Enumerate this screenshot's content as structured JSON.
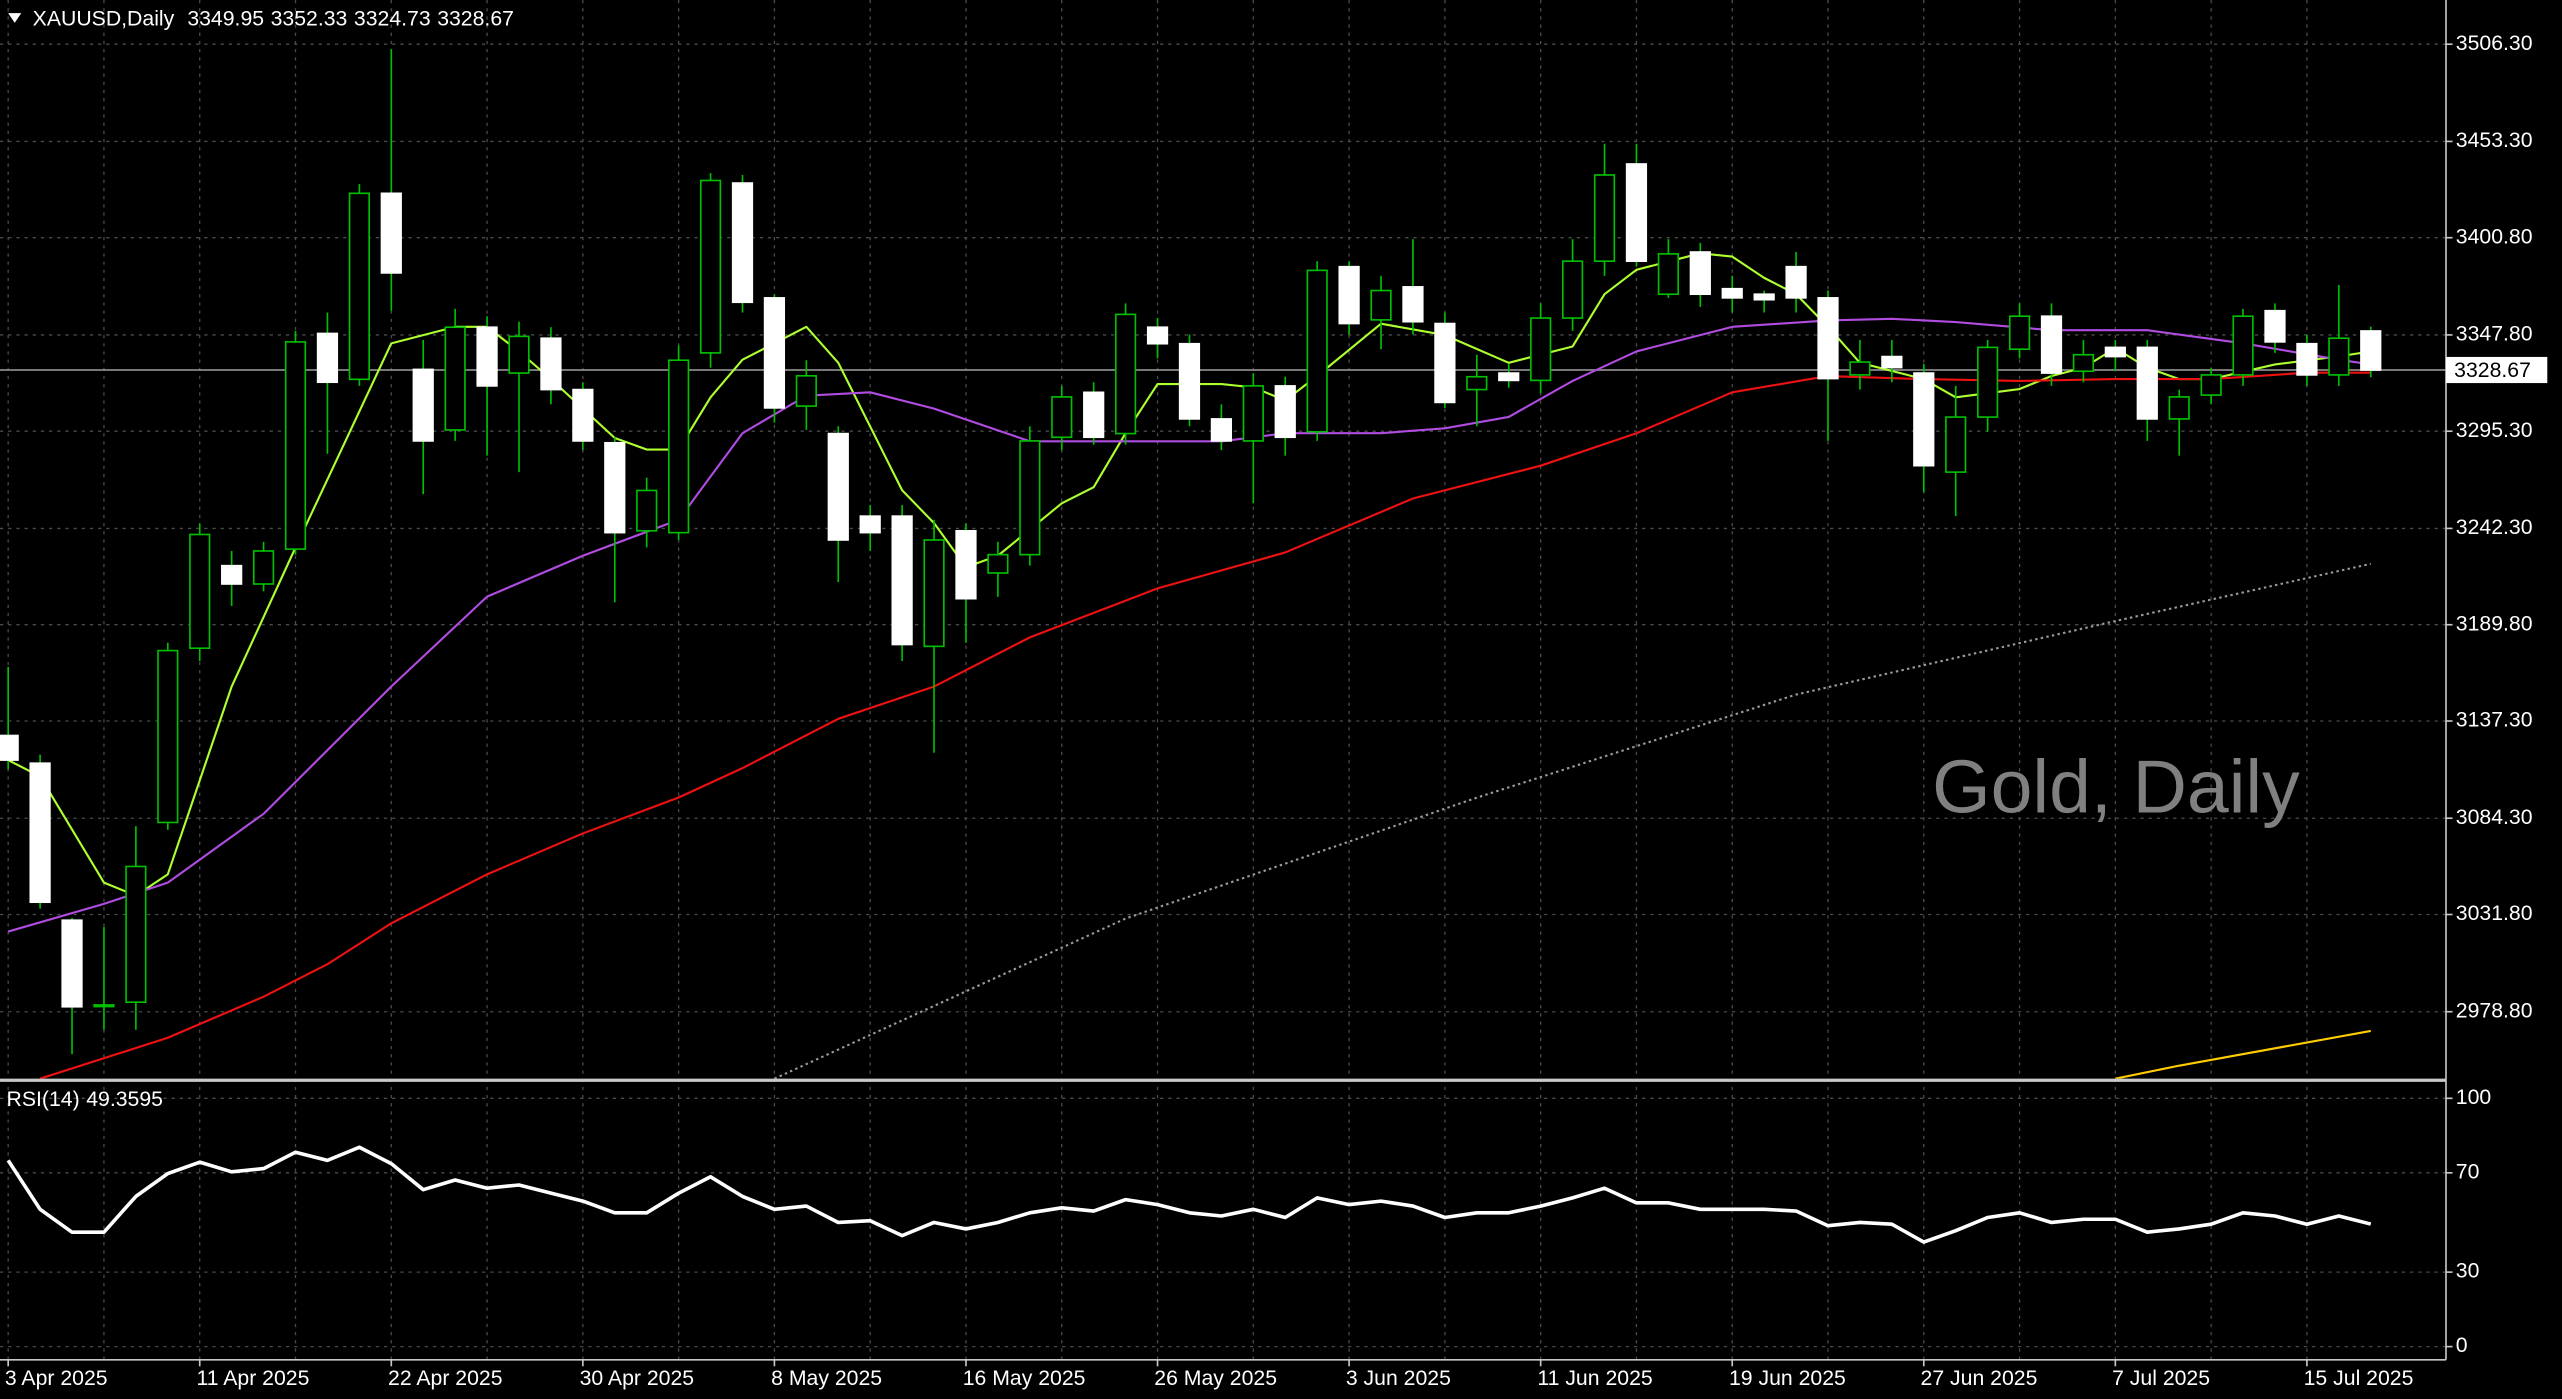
{
  "chart_data": {
    "type": "candlestick",
    "symbol": "XAUUSD,Daily",
    "title": "Gold, Daily",
    "categories": [
      "3 Apr 2025",
      null,
      null,
      null,
      null,
      null,
      "11 Apr 2025",
      null,
      null,
      null,
      null,
      null,
      "22 Apr 2025",
      null,
      null,
      null,
      null,
      null,
      "30 Apr 2025",
      null,
      null,
      null,
      null,
      null,
      "8 May 2025",
      null,
      null,
      null,
      null,
      null,
      "16 May 2025",
      null,
      null,
      null,
      null,
      null,
      "26 May 2025",
      null,
      null,
      null,
      null,
      null,
      "3 Jun 2025",
      null,
      null,
      null,
      null,
      null,
      "11 Jun 2025",
      null,
      null,
      null,
      null,
      null,
      "19 Jun 2025",
      null,
      null,
      null,
      null,
      null,
      "27 Jun 2025",
      null,
      null,
      null,
      null,
      null,
      "7 Jul 2025",
      null,
      null,
      null,
      null,
      null,
      "15 Jul 2025",
      null,
      null
    ],
    "open": [
      3129.4,
      3114.3,
      3028.7,
      2982,
      2984,
      3082,
      3177,
      3222,
      3212,
      3231,
      3348.6,
      3323.6,
      3425,
      3329,
      3296,
      3352,
      3327,
      3346,
      3318,
      3289,
      3241,
      3240,
      3338,
      3430.6,
      3368,
      3309,
      3294,
      3249,
      3249,
      3178,
      3241,
      3218,
      3228,
      3292,
      3316.5,
      3294,
      3352,
      3343,
      3302,
      3290,
      3320,
      3295,
      3385,
      3356,
      3374,
      3354,
      3318,
      3327,
      3323,
      3357,
      3388,
      3441,
      3370,
      3393,
      3373,
      3370,
      3385,
      3368,
      3326,
      3336,
      3327,
      3273,
      3303,
      3340,
      3358,
      3328,
      3341,
      3341,
      3302,
      3315,
      3326,
      3361,
      3343,
      3326,
      3349.95
    ],
    "high": [
      3166.8,
      3119,
      3030,
      3025,
      3080,
      3180,
      3245,
      3230,
      3235,
      3350,
      3360,
      3430,
      3503.6,
      3345,
      3362,
      3358,
      3355,
      3352,
      3322,
      3292,
      3270,
      3342,
      3436,
      3435,
      3370,
      3334,
      3298,
      3255,
      3255,
      3247,
      3245,
      3235,
      3298,
      3320,
      3322,
      3365,
      3357,
      3348,
      3310,
      3327,
      3325,
      3388,
      3388,
      3380,
      3400,
      3360,
      3337,
      3332,
      3365,
      3400,
      3452,
      3452,
      3400,
      3398,
      3380,
      3372,
      3393,
      3372,
      3345,
      3345,
      3332,
      3320,
      3345,
      3365,
      3365,
      3345,
      3345,
      3345,
      3318,
      3330,
      3362,
      3365,
      3348,
      3375,
      3352.33
    ],
    "low": [
      3111,
      3035,
      2955.6,
      2969,
      2969,
      3078,
      3170,
      3200,
      3208,
      3228,
      3283,
      3320,
      3361,
      3261,
      3290,
      3282,
      3273,
      3310,
      3285,
      3202,
      3232,
      3236,
      3330,
      3360,
      3300,
      3296,
      3213,
      3230,
      3170,
      3120,
      3180,
      3205,
      3222,
      3285,
      3288,
      3288,
      3335,
      3298,
      3285,
      3256,
      3282,
      3290,
      3348,
      3340,
      3348,
      3308,
      3298,
      3319,
      3316,
      3350,
      3380,
      3385,
      3368,
      3363,
      3360,
      3360,
      3360,
      3290,
      3318,
      3322,
      3262,
      3249,
      3295,
      3335,
      3320,
      3322,
      3328,
      3290,
      3282,
      3310,
      3320,
      3338,
      3320,
      3320,
      3324.73
    ],
    "close": [
      3116,
      3038.5,
      2981.5,
      2982.5,
      3058,
      3175.7,
      3239,
      3212,
      3230,
      3344,
      3322,
      3425,
      3381.6,
      3290,
      3352,
      3320,
      3347,
      3318,
      3290,
      3240,
      3263,
      3334,
      3432,
      3365.6,
      3308,
      3325.5,
      3236,
      3240,
      3179,
      3236,
      3204,
      3228,
      3290,
      3314,
      3292,
      3359,
      3343,
      3302,
      3290,
      3320,
      3292,
      3383,
      3354,
      3372,
      3355,
      3311,
      3325,
      3323,
      3357,
      3388,
      3435,
      3388,
      3392,
      3370,
      3368,
      3367,
      3368,
      3324,
      3333,
      3330,
      3276.5,
      3303,
      3341,
      3358,
      3327,
      3337,
      3336,
      3302,
      3314,
      3326,
      3358,
      3344,
      3326,
      3346,
      3328.67
    ],
    "up_color": "#00c000",
    "down_color": "#ffffff",
    "overlays": [
      {
        "color": "#adff2f",
        "style": "solid",
        "x": [
          0,
          1,
          3,
          4,
          5,
          7,
          9,
          12,
          14,
          15,
          16,
          17,
          19,
          20,
          21,
          22,
          23,
          25,
          26,
          28,
          29,
          30,
          31,
          33,
          34,
          35,
          36,
          38,
          39,
          40,
          41,
          43,
          45,
          47,
          49,
          50,
          51,
          53,
          54,
          55,
          56,
          57,
          58,
          60,
          61,
          63,
          64,
          65,
          66,
          67,
          68,
          69,
          71,
          73,
          74
        ],
        "values": [
          3116.0,
          3107.1,
          3049.2,
          3042.1,
          3053.7,
          3156.1,
          3231.9,
          3343.2,
          3352.2,
          3352.2,
          3338.8,
          3323.7,
          3291.6,
          3285.3,
          3285.3,
          3313.8,
          3334.3,
          3352.2,
          3332.6,
          3263.1,
          3245.2,
          3221.2,
          3227.4,
          3256.0,
          3264.8,
          3294.2,
          3321.0,
          3321.0,
          3319.2,
          3312.1,
          3325.4,
          3353.9,
          3347.7,
          3332.6,
          3341.5,
          3370.0,
          3383.3,
          3392.3,
          3390.5,
          3378.9,
          3370.0,
          3352.2,
          3332.6,
          3323.7,
          3313.8,
          3318.3,
          3325.4,
          3329.9,
          3340.6,
          3329.9,
          3323.7,
          3323.7,
          3331.7,
          3336.1,
          3338.8
        ]
      },
      {
        "color": "#b04ce0",
        "style": "solid",
        "x": [
          0,
          3,
          5,
          8,
          12,
          15,
          18,
          21,
          23,
          25,
          27,
          29,
          32,
          35,
          38,
          40,
          43,
          45,
          47,
          49,
          51,
          54,
          57,
          59,
          61,
          64,
          67,
          70,
          73,
          74
        ],
        "values": [
          3022.5,
          3037.6,
          3049.2,
          3086.7,
          3156.1,
          3205.1,
          3227.4,
          3247.0,
          3294.2,
          3314.7,
          3316.5,
          3307.6,
          3289.8,
          3289.8,
          3289.8,
          3294.2,
          3294.2,
          3296.9,
          3303.1,
          3322.7,
          3338.8,
          3352.2,
          3355.7,
          3356.6,
          3354.8,
          3350.4,
          3350.4,
          3343.2,
          3334.3,
          3331.7
        ]
      },
      {
        "color": "#ee1111",
        "style": "solid",
        "x": [
          1,
          5,
          8,
          10,
          12,
          15,
          18,
          21,
          23,
          26,
          29,
          32,
          36,
          40,
          44,
          48,
          51,
          54,
          57,
          60,
          63,
          66,
          69,
          72,
          74
        ],
        "values": [
          2942.3,
          2964.6,
          2987.0,
          3004.7,
          3027.0,
          3053.7,
          3076.0,
          3095.6,
          3111.6,
          3138.5,
          3156.1,
          3182.9,
          3209.6,
          3229.2,
          3258.6,
          3276.5,
          3294.2,
          3316.5,
          3325.4,
          3323.7,
          3322.7,
          3323.7,
          3323.7,
          3327.2,
          3327.2
        ]
      },
      {
        "color": "#9a9a9a",
        "style": "dotted",
        "x": [
          24,
          35,
          46,
          56,
          66,
          74
        ],
        "values": [
          2942.3,
          3029.6,
          3095.5,
          3151.7,
          3191.8,
          3223.0
        ]
      },
      {
        "color": "#ffcc00",
        "style": "solid",
        "x": [
          66,
          68,
          74
        ],
        "values": [
          2942.3,
          2949.4,
          2968.3
        ]
      }
    ],
    "ylim": [
      2942.3,
      3530.4
    ],
    "yticks": [
      {
        "value": 3506.3,
        "label": "3506.30"
      },
      {
        "value": 3453.3,
        "label": "3453.30"
      },
      {
        "value": 3400.8,
        "label": "3400.80"
      },
      {
        "value": 3347.8,
        "label": "3347.80"
      },
      {
        "value": 3295.3,
        "label": "3295.30"
      },
      {
        "value": 3242.3,
        "label": "3242.30"
      },
      {
        "value": 3189.8,
        "label": "3189.80"
      },
      {
        "value": 3137.3,
        "label": "3137.30"
      },
      {
        "value": 3084.3,
        "label": "3084.30"
      },
      {
        "value": 3031.8,
        "label": "3031.80"
      },
      {
        "value": 2978.8,
        "label": "2978.80"
      }
    ],
    "grid": true,
    "rsi": {
      "label": "RSI(14)",
      "color": "#ffffff",
      "values": [
        75.0,
        55.3,
        46.1,
        46.1,
        60.5,
        69.7,
        74.3,
        70.4,
        71.7,
        78.3,
        75.0,
        80.3,
        73.7,
        63.2,
        67.1,
        63.8,
        65.1,
        61.8,
        58.6,
        53.9,
        53.9,
        61.8,
        68.4,
        60.5,
        55.3,
        56.6,
        50.0,
        50.7,
        44.7,
        50.0,
        47.4,
        50.0,
        53.9,
        55.9,
        54.6,
        59.2,
        57.2,
        53.9,
        52.6,
        55.3,
        52.0,
        59.9,
        57.2,
        58.6,
        56.6,
        52.0,
        53.9,
        53.9,
        56.6,
        59.9,
        63.8,
        57.9,
        57.9,
        55.3,
        55.3,
        55.3,
        54.6,
        48.7,
        50.0,
        49.3,
        42.1,
        46.7,
        52.0,
        53.9,
        50.0,
        51.3,
        51.3,
        46.1,
        47.4,
        49.3,
        53.9,
        52.6,
        49.3,
        52.6,
        49.3595
      ],
      "ylim": [
        -5.3,
        106.6
      ],
      "yticks": [
        100,
        70,
        30,
        0
      ]
    }
  }
}
